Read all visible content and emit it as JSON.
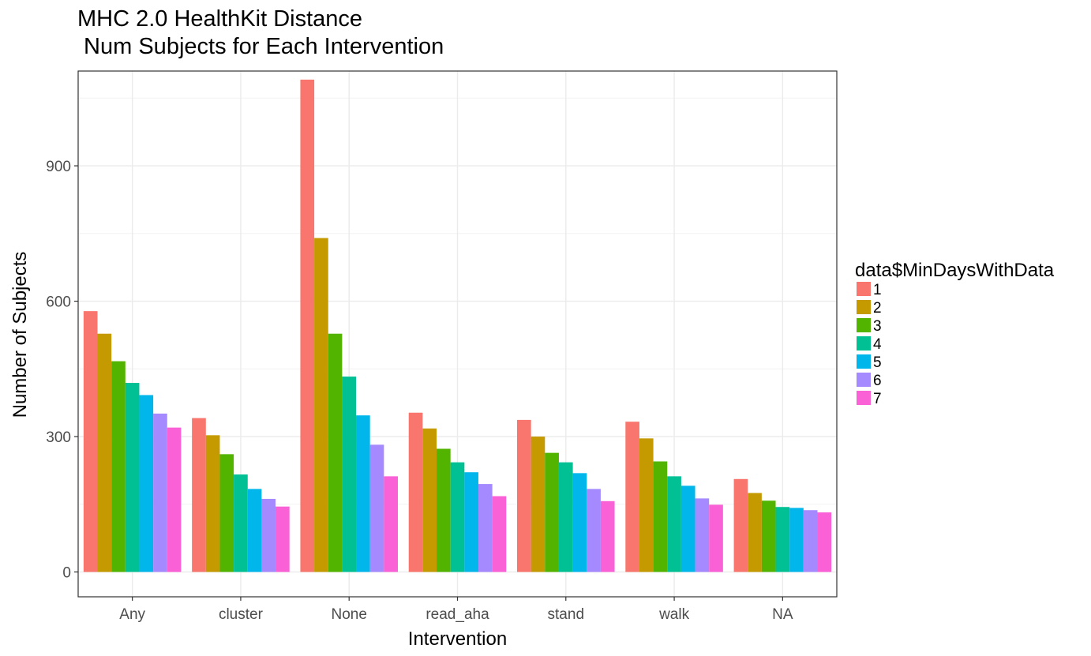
{
  "chart_data": {
    "type": "bar",
    "title": "MHC 2.0 HealthKit Distance",
    "subtitle": " Num Subjects for Each Intervention",
    "xlabel": "Intervention",
    "ylabel": "Number of Subjects",
    "ylim": [
      -55,
      1110
    ],
    "yticks": [
      0,
      300,
      600,
      900
    ],
    "grid": true,
    "legend_title": "data$MinDaysWithData",
    "legend_position": "right",
    "categories": [
      "Any",
      "cluster",
      "None",
      "read_aha",
      "stand",
      "walk",
      "NA"
    ],
    "series": [
      {
        "name": "1",
        "color": "#F8766D",
        "values": [
          578,
          341,
          1091,
          353,
          337,
          333,
          206
        ]
      },
      {
        "name": "2",
        "color": "#C49A00",
        "values": [
          528,
          303,
          740,
          318,
          300,
          296,
          175
        ]
      },
      {
        "name": "3",
        "color": "#53B400",
        "values": [
          467,
          261,
          528,
          273,
          264,
          245,
          158
        ]
      },
      {
        "name": "4",
        "color": "#00C094",
        "values": [
          419,
          216,
          433,
          243,
          243,
          212,
          144
        ]
      },
      {
        "name": "5",
        "color": "#00B6EB",
        "values": [
          392,
          184,
          347,
          221,
          219,
          191,
          142
        ]
      },
      {
        "name": "6",
        "color": "#A58AFF",
        "values": [
          351,
          162,
          282,
          195,
          184,
          163,
          137
        ]
      },
      {
        "name": "7",
        "color": "#FB61D7",
        "values": [
          320,
          145,
          212,
          168,
          157,
          149,
          132
        ]
      }
    ]
  }
}
